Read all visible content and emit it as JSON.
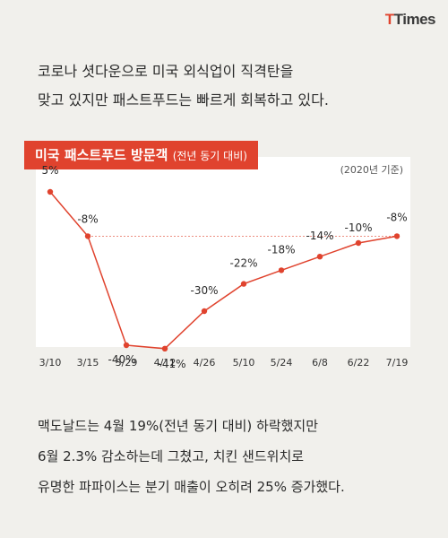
{
  "logo": {
    "text_1": "T",
    "text_2": "Times"
  },
  "intro": {
    "line_1": "코로나 셧다운으로 미국 외식업이 직격탄을",
    "line_2": "맞고 있지만 패스트푸드는 빠르게 회복하고 있다."
  },
  "chart_title": {
    "main": "미국 패스트푸드 방문객",
    "sub": "(전년 동기 대비)"
  },
  "base_note": "(2020년 기준)",
  "chart_data": {
    "type": "line",
    "categories": [
      "3/10",
      "3/15",
      "3/29",
      "4/12",
      "4/26",
      "5/10",
      "5/24",
      "6/8",
      "6/22",
      "7/19"
    ],
    "values": [
      5,
      -8,
      -40,
      -41,
      -30,
      -22,
      -18,
      -14,
      -10,
      -8
    ],
    "value_labels": [
      "5%",
      "-8%",
      "-40%",
      "-41%",
      "-30%",
      "-22%",
      "-18%",
      "-14%",
      "-10%",
      "-8%"
    ],
    "title": "미국 패스트푸드 방문객 (전년 동기 대비)",
    "xlabel": "",
    "ylabel": "",
    "ylim": [
      -45,
      10
    ],
    "grid": false,
    "reference_line": -8,
    "colors": {
      "line": "#e0432e",
      "reference": "#e0432e",
      "accent": "#e0432e"
    }
  },
  "outro": {
    "line_1": "맥도날드는 4월 19%(전년 동기 대비) 하락했지만",
    "line_2": "6월 2.3% 감소하는데 그쳤고, 치킨 샌드위치로",
    "line_3": "유명한 파파이스는 분기 매출이 오히려 25% 증가했다."
  }
}
